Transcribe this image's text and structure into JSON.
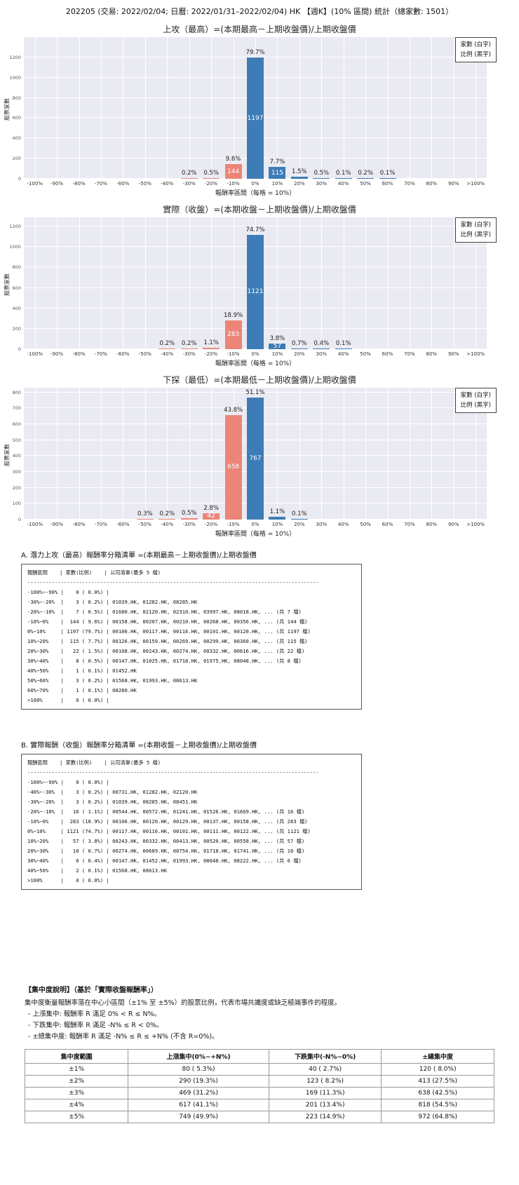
{
  "page_title": "202205 (交易: 2022/02/04; 日曆: 2022/01/31–2022/02/04) HK 【週K】(10% 區間) 統計（總家數: 1501）",
  "palette": {
    "bar_negative": "#ec8578",
    "bar_positive": "#3e7cb7",
    "plot_background": "#eaeaf2",
    "grid_line": "#ffffff"
  },
  "chart_data": [
    {
      "type": "bar",
      "title": "上攻（最高）=(本期最高－上期收盤價)/上期收盤價",
      "ylabel": "股票家數",
      "xlabel": "報酬率區間（每格 = 10%）",
      "legend": [
        "家數 (白字)",
        "比例 (黑字)"
      ],
      "legend_position": "top-right",
      "grid": true,
      "categories": [
        "-100%",
        "-90%",
        "-80%",
        "-70%",
        "-60%",
        "-50%",
        "-40%",
        "-30%",
        "-20%",
        "-10%",
        "0%",
        "10%",
        "20%",
        "30%",
        "40%",
        "50%",
        "60%",
        "70%",
        "80%",
        "90%",
        ">100%"
      ],
      "ylim": [
        0,
        1400
      ],
      "yticks": [
        0,
        200,
        400,
        600,
        800,
        1000,
        1200
      ],
      "bars": [
        {
          "cat": "-30%",
          "count": 3,
          "pct_label": "0.2%",
          "count_shown": false
        },
        {
          "cat": "-20%",
          "count": 7,
          "pct_label": "0.5%",
          "count_shown": false
        },
        {
          "cat": "-10%",
          "count": 144,
          "pct_label": "9.6%",
          "count_shown": true
        },
        {
          "cat": "0%",
          "count": 1197,
          "pct_label": "79.7%",
          "count_shown": true
        },
        {
          "cat": "10%",
          "count": 115,
          "pct_label": "7.7%",
          "count_shown": true
        },
        {
          "cat": "20%",
          "count": 22,
          "pct_label": "1.5%",
          "count_shown": false
        },
        {
          "cat": "30%",
          "count": 8,
          "pct_label": "0.5%",
          "count_shown": false
        },
        {
          "cat": "40%",
          "count": 1,
          "pct_label": "0.1%",
          "count_shown": false
        },
        {
          "cat": "50%",
          "count": 3,
          "pct_label": "0.2%",
          "count_shown": false
        },
        {
          "cat": "60%",
          "count": 1,
          "pct_label": "0.1%",
          "count_shown": false
        }
      ]
    },
    {
      "type": "bar",
      "title": "實際（收盤）=(本期收盤－上期收盤價)/上期收盤價",
      "ylabel": "股票家數",
      "xlabel": "報酬率區間（每格 = 10%）",
      "legend": [
        "家數 (白字)",
        "比例 (黑字)"
      ],
      "legend_position": "top-right",
      "grid": true,
      "categories": [
        "-100%",
        "-90%",
        "-80%",
        "-70%",
        "-60%",
        "-50%",
        "-40%",
        "-30%",
        "-20%",
        "-10%",
        "0%",
        "10%",
        "20%",
        "30%",
        "40%",
        "50%",
        "60%",
        "70%",
        "80%",
        "90%",
        ">100%"
      ],
      "ylim": [
        0,
        1290
      ],
      "yticks": [
        0,
        200,
        400,
        600,
        800,
        1000,
        1200
      ],
      "bars": [
        {
          "cat": "-40%",
          "count": 3,
          "pct_label": "0.2%",
          "count_shown": false
        },
        {
          "cat": "-30%",
          "count": 3,
          "pct_label": "0.2%",
          "count_shown": false
        },
        {
          "cat": "-20%",
          "count": 16,
          "pct_label": "1.1%",
          "count_shown": false
        },
        {
          "cat": "-10%",
          "count": 283,
          "pct_label": "18.9%",
          "count_shown": true
        },
        {
          "cat": "0%",
          "count": 1121,
          "pct_label": "74.7%",
          "count_shown": true
        },
        {
          "cat": "10%",
          "count": 57,
          "pct_label": "3.8%",
          "count_shown": true
        },
        {
          "cat": "20%",
          "count": 10,
          "pct_label": "0.7%",
          "count_shown": false
        },
        {
          "cat": "30%",
          "count": 6,
          "pct_label": "0.4%",
          "count_shown": false
        },
        {
          "cat": "40%",
          "count": 2,
          "pct_label": "0.1%",
          "count_shown": false
        }
      ]
    },
    {
      "type": "bar",
      "title": "下探（最低）=(本期最低－上期收盤價)/上期收盤價",
      "ylabel": "股票家數",
      "xlabel": "報酬率區間（每格 = 10%）",
      "legend": [
        "家數 (白字)",
        "比例 (黑字)"
      ],
      "legend_position": "top-right",
      "grid": true,
      "categories": [
        "-100%",
        "-90%",
        "-80%",
        "-70%",
        "-60%",
        "-50%",
        "-40%",
        "-30%",
        "-20%",
        "-10%",
        "0%",
        "10%",
        "20%",
        "30%",
        "40%",
        "50%",
        "60%",
        "70%",
        "80%",
        "90%",
        ">100%"
      ],
      "ylim": [
        0,
        830
      ],
      "yticks": [
        0,
        100,
        200,
        300,
        400,
        500,
        600,
        700,
        800
      ],
      "bars": [
        {
          "cat": "-50%",
          "count": 5,
          "pct_label": "0.3%",
          "count_shown": false
        },
        {
          "cat": "-40%",
          "count": 3,
          "pct_label": "0.2%",
          "count_shown": false
        },
        {
          "cat": "-30%",
          "count": 7,
          "pct_label": "0.5%",
          "count_shown": false
        },
        {
          "cat": "-20%",
          "count": 42,
          "pct_label": "2.8%",
          "count_shown": true
        },
        {
          "cat": "-10%",
          "count": 658,
          "pct_label": "43.8%",
          "count_shown": true
        },
        {
          "cat": "0%",
          "count": 767,
          "pct_label": "51.1%",
          "count_shown": true
        },
        {
          "cat": "10%",
          "count": 17,
          "pct_label": "1.1%",
          "count_shown": false
        },
        {
          "cat": "20%",
          "count": 2,
          "pct_label": "0.1%",
          "count_shown": false
        }
      ]
    }
  ],
  "section_a": {
    "heading": "A. 潛力上攻（最高）報酬率分箱清單 =(本期最高－上期收盤價)/上期收盤價",
    "columns_header": "報酬區間    | 家數(比例)    | 公司清單(最多 5 檔)",
    "separator": "------------------------------------------------------------------------------------------------",
    "rows": [
      "-100%~-90% |    0 ( 0.0%) |",
      "-30%~-20%  |    3 ( 0.2%) | 01039.HK, 01282.HK, 08285.HK",
      "-20%~-10%  |    7 ( 0.5%) | 01680.HK, 02120.HK, 02310.HK, 03997.HK, 08018.HK, ... (共 7 檔)",
      "-10%~0%    |  144 ( 9.6%) | 00158.HK, 00207.HK, 00210.HK, 00268.HK, 00356.HK, ... (共 144 檔)",
      "0%~10%     | 1197 (79.7%) | 00106.HK, 00117.HK, 00116.HK, 00101.HK, 00120.HK, ... (共 1197 檔)",
      "10%~20%    |  115 ( 7.7%) | 00126.HK, 00159.HK, 00269.HK, 00299.HK, 00360.HK, ... (共 115 檔)",
      "20%~30%    |   22 ( 1.5%) | 00108.HK, 00243.HK, 00274.HK, 00332.HK, 00616.HK, ... (共 22 檔)",
      "30%~40%    |    8 ( 0.5%) | 00147.HK, 01025.HK, 01718.HK, 01975.HK, 08048.HK, ... (共 8 檔)",
      "40%~50%    |    1 ( 0.1%) | 01452.HK",
      "50%~60%    |    3 ( 0.2%) | 01568.HK, 01993.HK, 08613.HK",
      "60%~70%    |    1 ( 0.1%) | 08280.HK",
      ">100%      |    0 ( 0.0%) |"
    ]
  },
  "section_b": {
    "heading": "B. 實際報酬（收盤）報酬率分箱清單 =(本期收盤－上期收盤價)/上期收盤價",
    "columns_header": "報酬區間    | 家數(比例)    | 公司清單(最多 5 檔)",
    "separator": "------------------------------------------------------------------------------------------------",
    "rows": [
      "-100%~-90% |    0 ( 0.0%) |",
      "-40%~-30%  |    3 ( 0.2%) | 00731.HK, 01282.HK, 02120.HK",
      "-30%~-20%  |    3 ( 0.2%) | 01039.HK, 08285.HK, 08451.HK",
      "-20%~-10%  |   16 ( 1.1%) | 00544.HK, 00572.HK, 01241.HK, 01526.HK, 01669.HK, ... (共 16 檔)",
      "-10%~0%    |  283 (18.9%) | 00106.HK, 00120.HK, 00129.HK, 00137.HK, 00158.HK, ... (共 283 檔)",
      "0%~10%     | 1121 (74.7%) | 00117.HK, 00116.HK, 00101.HK, 00111.HK, 00122.HK, ... (共 1121 檔)",
      "10%~20%    |   57 ( 3.8%) | 00243.HK, 00332.HK, 00413.HK, 00520.HK, 00558.HK, ... (共 57 檔)",
      "20%~30%    |   10 ( 0.7%) | 00274.HK, 00689.HK, 00754.HK, 01718.HK, 01741.HK, ... (共 10 檔)",
      "30%~40%    |    6 ( 0.4%) | 00147.HK, 01452.HK, 01993.HK, 08048.HK, 08222.HK, ... (共 6 檔)",
      "40%~50%    |    2 ( 0.1%) | 01568.HK, 08613.HK",
      ">100%      |    0 ( 0.0%) |"
    ]
  },
  "concentration": {
    "title": "【集中度說明】（基於「實際收盤報酬率」）",
    "description": "集中度衡量報酬率落在中心小區間（±1% 至 ±5%）的股票比例，代表市場共識度或缺乏極端事件的程度。",
    "bullets": [
      "- 上漲集中: 報酬率 R 滿足 0% < R ≤ N%。",
      "- 下跌集中: 報酬率 R 滿足 -N% ≤ R < 0%。",
      "- ±總集中度: 報酬率 R 滿足 -N% ≤ R ≤ +N% (不含 R=0%)。"
    ],
    "table": {
      "headers": [
        "集中度範圍",
        "上漲集中(0%~+N%)",
        "下跌集中(-N%~0%)",
        "±總集中度"
      ],
      "rows": [
        [
          "±1%",
          "80 ( 5.3%)",
          "40 ( 2.7%)",
          "120 ( 8.0%)"
        ],
        [
          "±2%",
          "290 (19.3%)",
          "123 ( 8.2%)",
          "413 (27.5%)"
        ],
        [
          "±3%",
          "469 (31.2%)",
          "169 (11.3%)",
          "638 (42.5%)"
        ],
        [
          "±4%",
          "617 (41.1%)",
          "201 (13.4%)",
          "818 (54.5%)"
        ],
        [
          "±5%",
          "749 (49.9%)",
          "223 (14.9%)",
          "972 (64.8%)"
        ]
      ]
    }
  }
}
